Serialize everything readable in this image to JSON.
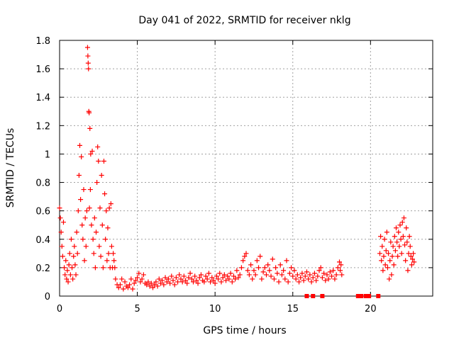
{
  "chart_data": {
    "type": "scatter",
    "title": "Day 041 of 2022, SRMTID for receiver nklg",
    "xlabel": "GPS time / hours",
    "ylabel": "SRMTID / TECUs",
    "xlim": [
      0,
      24
    ],
    "ylim": [
      0,
      1.8
    ],
    "xticks": [
      0,
      5,
      10,
      15,
      20
    ],
    "xtick_labels": [
      "0",
      "5",
      "10",
      "15",
      "20"
    ],
    "yticks": [
      0,
      0.2,
      0.4,
      0.6,
      0.8,
      1.0,
      1.2,
      1.4,
      1.6,
      1.8
    ],
    "ytick_labels": [
      "0",
      "0.2",
      "0.4",
      "0.6",
      "0.8",
      "1",
      "1.2",
      "1.4",
      "1.6",
      "1.8"
    ],
    "grid": true,
    "marker": "plus",
    "marker_color": "#ff0000",
    "series": [
      {
        "name": "SRMTID",
        "points": [
          [
            0.0,
            0.62
          ],
          [
            0.05,
            0.55
          ],
          [
            0.1,
            0.45
          ],
          [
            0.15,
            0.35
          ],
          [
            0.2,
            0.28
          ],
          [
            0.25,
            0.52
          ],
          [
            0.3,
            0.2
          ],
          [
            0.35,
            0.15
          ],
          [
            0.4,
            0.25
          ],
          [
            0.45,
            0.12
          ],
          [
            0.5,
            0.18
          ],
          [
            0.55,
            0.1
          ],
          [
            0.6,
            0.22
          ],
          [
            0.65,
            0.3
          ],
          [
            0.7,
            0.15
          ],
          [
            0.75,
            0.4
          ],
          [
            0.8,
            0.2
          ],
          [
            0.85,
            0.12
          ],
          [
            0.9,
            0.28
          ],
          [
            0.95,
            0.35
          ],
          [
            1.0,
            0.22
          ],
          [
            1.05,
            0.15
          ],
          [
            1.1,
            0.45
          ],
          [
            1.15,
            0.3
          ],
          [
            1.2,
            0.6
          ],
          [
            1.25,
            0.85
          ],
          [
            1.3,
            1.06
          ],
          [
            1.35,
            0.68
          ],
          [
            1.4,
            0.98
          ],
          [
            1.45,
            0.5
          ],
          [
            1.5,
            0.4
          ],
          [
            1.55,
            0.75
          ],
          [
            1.6,
            0.25
          ],
          [
            1.65,
            0.55
          ],
          [
            1.7,
            0.35
          ],
          [
            1.75,
            0.6
          ],
          [
            1.8,
            1.75
          ],
          [
            1.82,
            1.69
          ],
          [
            1.84,
            1.64
          ],
          [
            1.86,
            1.6
          ],
          [
            1.88,
            1.3
          ],
          [
            1.9,
            1.29
          ],
          [
            1.92,
            0.62
          ],
          [
            1.95,
            1.18
          ],
          [
            1.98,
            0.75
          ],
          [
            2.0,
            1.0
          ],
          [
            2.05,
            0.5
          ],
          [
            2.1,
            1.02
          ],
          [
            2.15,
            0.4
          ],
          [
            2.2,
            0.3
          ],
          [
            2.25,
            0.55
          ],
          [
            2.3,
            0.2
          ],
          [
            2.35,
            0.45
          ],
          [
            2.4,
            0.8
          ],
          [
            2.45,
            1.05
          ],
          [
            2.5,
            0.95
          ],
          [
            2.55,
            0.35
          ],
          [
            2.6,
            0.62
          ],
          [
            2.65,
            0.28
          ],
          [
            2.7,
            0.85
          ],
          [
            2.75,
            0.5
          ],
          [
            2.8,
            0.2
          ],
          [
            2.85,
            0.95
          ],
          [
            2.9,
            0.72
          ],
          [
            2.95,
            0.4
          ],
          [
            3.0,
            0.6
          ],
          [
            3.05,
            0.25
          ],
          [
            3.1,
            0.48
          ],
          [
            3.15,
            0.3
          ],
          [
            3.2,
            0.62
          ],
          [
            3.25,
            0.2
          ],
          [
            3.3,
            0.65
          ],
          [
            3.35,
            0.35
          ],
          [
            3.4,
            0.2
          ],
          [
            3.45,
            0.3
          ],
          [
            3.5,
            0.25
          ],
          [
            3.55,
            0.2
          ],
          [
            3.6,
            0.12
          ],
          [
            3.7,
            0.08
          ],
          [
            3.8,
            0.06
          ],
          [
            3.9,
            0.08
          ],
          [
            4.0,
            0.12
          ],
          [
            4.1,
            0.05
          ],
          [
            4.2,
            0.1
          ],
          [
            4.3,
            0.07
          ],
          [
            4.4,
            0.06
          ],
          [
            4.5,
            0.08
          ],
          [
            4.6,
            0.12
          ],
          [
            4.7,
            0.05
          ],
          [
            4.8,
            0.09
          ],
          [
            4.9,
            0.11
          ],
          [
            5.0,
            0.13
          ],
          [
            5.1,
            0.16
          ],
          [
            5.2,
            0.1
          ],
          [
            5.3,
            0.12
          ],
          [
            5.4,
            0.15
          ],
          [
            5.5,
            0.09
          ],
          [
            5.6,
            0.08
          ],
          [
            5.7,
            0.1
          ],
          [
            5.8,
            0.07
          ],
          [
            5.9,
            0.09
          ],
          [
            6.0,
            0.06
          ],
          [
            6.1,
            0.08
          ],
          [
            6.2,
            0.1
          ],
          [
            6.3,
            0.07
          ],
          [
            6.4,
            0.12
          ],
          [
            6.5,
            0.09
          ],
          [
            6.6,
            0.11
          ],
          [
            6.7,
            0.08
          ],
          [
            6.8,
            0.13
          ],
          [
            6.9,
            0.1
          ],
          [
            7.0,
            0.12
          ],
          [
            7.1,
            0.09
          ],
          [
            7.2,
            0.14
          ],
          [
            7.3,
            0.11
          ],
          [
            7.4,
            0.08
          ],
          [
            7.5,
            0.13
          ],
          [
            7.6,
            0.1
          ],
          [
            7.7,
            0.15
          ],
          [
            7.8,
            0.12
          ],
          [
            7.9,
            0.1
          ],
          [
            8.0,
            0.14
          ],
          [
            8.1,
            0.11
          ],
          [
            8.2,
            0.09
          ],
          [
            8.3,
            0.13
          ],
          [
            8.4,
            0.16
          ],
          [
            8.5,
            0.12
          ],
          [
            8.6,
            0.1
          ],
          [
            8.7,
            0.14
          ],
          [
            8.8,
            0.11
          ],
          [
            8.9,
            0.09
          ],
          [
            9.0,
            0.13
          ],
          [
            9.1,
            0.15
          ],
          [
            9.2,
            0.11
          ],
          [
            9.3,
            0.1
          ],
          [
            9.4,
            0.14
          ],
          [
            9.5,
            0.12
          ],
          [
            9.6,
            0.16
          ],
          [
            9.7,
            0.1
          ],
          [
            9.8,
            0.13
          ],
          [
            9.9,
            0.11
          ],
          [
            10.0,
            0.09
          ],
          [
            10.1,
            0.14
          ],
          [
            10.2,
            0.12
          ],
          [
            10.3,
            0.16
          ],
          [
            10.4,
            0.1
          ],
          [
            10.5,
            0.13
          ],
          [
            10.6,
            0.15
          ],
          [
            10.7,
            0.11
          ],
          [
            10.8,
            0.14
          ],
          [
            10.9,
            0.12
          ],
          [
            11.0,
            0.16
          ],
          [
            11.1,
            0.1
          ],
          [
            11.2,
            0.14
          ],
          [
            11.3,
            0.12
          ],
          [
            11.4,
            0.18
          ],
          [
            11.5,
            0.13
          ],
          [
            11.6,
            0.15
          ],
          [
            11.7,
            0.2
          ],
          [
            11.8,
            0.25
          ],
          [
            11.9,
            0.28
          ],
          [
            12.0,
            0.3
          ],
          [
            12.1,
            0.18
          ],
          [
            12.2,
            0.15
          ],
          [
            12.3,
            0.22
          ],
          [
            12.4,
            0.12
          ],
          [
            12.5,
            0.18
          ],
          [
            12.6,
            0.15
          ],
          [
            12.7,
            0.25
          ],
          [
            12.8,
            0.2
          ],
          [
            12.9,
            0.28
          ],
          [
            13.0,
            0.12
          ],
          [
            13.1,
            0.17
          ],
          [
            13.2,
            0.2
          ],
          [
            13.3,
            0.15
          ],
          [
            13.4,
            0.22
          ],
          [
            13.5,
            0.18
          ],
          [
            13.6,
            0.14
          ],
          [
            13.7,
            0.26
          ],
          [
            13.8,
            0.12
          ],
          [
            13.9,
            0.2
          ],
          [
            14.0,
            0.16
          ],
          [
            14.1,
            0.1
          ],
          [
            14.2,
            0.22
          ],
          [
            14.3,
            0.15
          ],
          [
            14.4,
            0.18
          ],
          [
            14.5,
            0.12
          ],
          [
            14.6,
            0.25
          ],
          [
            14.7,
            0.1
          ],
          [
            14.8,
            0.16
          ],
          [
            14.9,
            0.2
          ],
          [
            15.0,
            0.14
          ],
          [
            15.1,
            0.18
          ],
          [
            15.2,
            0.12
          ],
          [
            15.3,
            0.15
          ],
          [
            15.4,
            0.1
          ],
          [
            15.5,
            0.13
          ],
          [
            15.6,
            0.16
          ],
          [
            15.7,
            0.11
          ],
          [
            15.8,
            0.14
          ],
          [
            15.9,
            0.17
          ],
          [
            16.0,
            0.12
          ],
          [
            16.1,
            0.15
          ],
          [
            16.2,
            0.1
          ],
          [
            16.3,
            0.13
          ],
          [
            16.4,
            0.16
          ],
          [
            16.5,
            0.11
          ],
          [
            16.6,
            0.14
          ],
          [
            16.7,
            0.18
          ],
          [
            16.8,
            0.2
          ],
          [
            16.9,
            0.13
          ],
          [
            17.0,
            0.16
          ],
          [
            17.1,
            0.11
          ],
          [
            17.2,
            0.15
          ],
          [
            17.3,
            0.12
          ],
          [
            17.4,
            0.17
          ],
          [
            17.5,
            0.14
          ],
          [
            17.6,
            0.18
          ],
          [
            17.7,
            0.12
          ],
          [
            17.8,
            0.15
          ],
          [
            17.9,
            0.2
          ],
          [
            18.0,
            0.24
          ],
          [
            18.05,
            0.18
          ],
          [
            18.1,
            0.22
          ],
          [
            18.15,
            0.15
          ],
          [
            20.6,
            0.3
          ],
          [
            20.65,
            0.42
          ],
          [
            20.7,
            0.25
          ],
          [
            20.75,
            0.35
          ],
          [
            20.8,
            0.18
          ],
          [
            20.85,
            0.28
          ],
          [
            20.9,
            0.4
          ],
          [
            20.95,
            0.22
          ],
          [
            21.0,
            0.32
          ],
          [
            21.05,
            0.45
          ],
          [
            21.1,
            0.2
          ],
          [
            21.15,
            0.3
          ],
          [
            21.2,
            0.12
          ],
          [
            21.25,
            0.25
          ],
          [
            21.3,
            0.38
          ],
          [
            21.35,
            0.15
          ],
          [
            21.4,
            0.28
          ],
          [
            21.45,
            0.35
          ],
          [
            21.5,
            0.22
          ],
          [
            21.55,
            0.42
          ],
          [
            21.6,
            0.32
          ],
          [
            21.65,
            0.48
          ],
          [
            21.7,
            0.38
          ],
          [
            21.75,
            0.28
          ],
          [
            21.8,
            0.45
          ],
          [
            21.85,
            0.35
          ],
          [
            21.9,
            0.5
          ],
          [
            21.95,
            0.4
          ],
          [
            22.0,
            0.3
          ],
          [
            22.05,
            0.52
          ],
          [
            22.1,
            0.42
          ],
          [
            22.15,
            0.55
          ],
          [
            22.2,
            0.36
          ],
          [
            22.25,
            0.25
          ],
          [
            22.3,
            0.48
          ],
          [
            22.35,
            0.38
          ],
          [
            22.4,
            0.18
          ],
          [
            22.45,
            0.3
          ],
          [
            22.5,
            0.42
          ],
          [
            22.55,
            0.35
          ],
          [
            22.6,
            0.28
          ],
          [
            22.65,
            0.22
          ],
          [
            22.7,
            0.26
          ],
          [
            22.75,
            0.3
          ],
          [
            22.8,
            0.24
          ]
        ]
      }
    ],
    "zero_markers": [
      15.9,
      16.3,
      16.9,
      19.2,
      19.4,
      19.7,
      19.9,
      20.5
    ]
  }
}
